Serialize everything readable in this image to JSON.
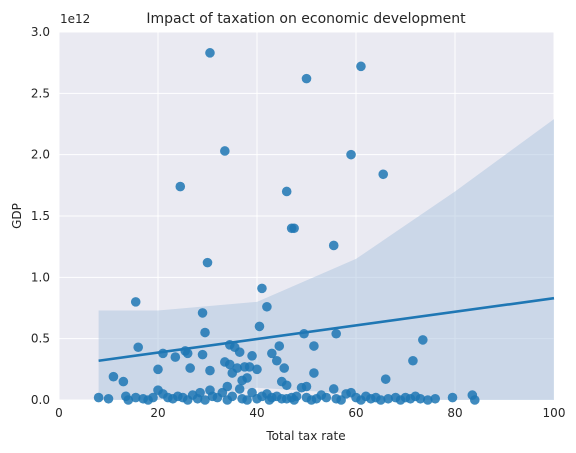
{
  "chart_data": {
    "type": "scatter",
    "title": "Impact of taxation on economic development",
    "xlabel": "Total tax rate",
    "ylabel": "GDP",
    "y_multiplier_label": "1e12",
    "xlim": [
      0,
      100
    ],
    "ylim": [
      0,
      3.0
    ],
    "xticks": [
      "0",
      "20",
      "40",
      "60",
      "80",
      "100"
    ],
    "yticks": [
      "0.0",
      "0.5",
      "1.0",
      "1.5",
      "2.0",
      "2.5",
      "3.0"
    ],
    "grid": true,
    "colors": {
      "background": "#eaeaf2",
      "grid": "#ffffff",
      "points": "#1f77b4",
      "band": "#b0c6e0"
    },
    "points": [
      [
        30.5,
        2.83
      ],
      [
        50,
        2.62
      ],
      [
        61,
        2.72
      ],
      [
        33.5,
        2.03
      ],
      [
        24.5,
        1.74
      ],
      [
        46,
        1.7
      ],
      [
        59,
        2.0
      ],
      [
        65.5,
        1.84
      ],
      [
        47,
        1.4
      ],
      [
        47.5,
        1.4
      ],
      [
        55.5,
        1.26
      ],
      [
        30,
        1.12
      ],
      [
        15.5,
        0.8
      ],
      [
        41,
        0.91
      ],
      [
        42,
        0.76
      ],
      [
        29,
        0.71
      ],
      [
        40.5,
        0.6
      ],
      [
        29.5,
        0.55
      ],
      [
        49.5,
        0.54
      ],
      [
        56,
        0.54
      ],
      [
        73.5,
        0.49
      ],
      [
        16,
        0.43
      ],
      [
        34.5,
        0.45
      ],
      [
        44.5,
        0.44
      ],
      [
        51.5,
        0.44
      ],
      [
        21,
        0.38
      ],
      [
        25.5,
        0.4
      ],
      [
        26,
        0.38
      ],
      [
        23.5,
        0.35
      ],
      [
        29,
        0.37
      ],
      [
        35.5,
        0.43
      ],
      [
        36.5,
        0.39
      ],
      [
        39,
        0.36
      ],
      [
        43,
        0.38
      ],
      [
        44,
        0.32
      ],
      [
        71.5,
        0.32
      ],
      [
        33.5,
        0.31
      ],
      [
        34.5,
        0.29
      ],
      [
        36,
        0.26
      ],
      [
        37.5,
        0.27
      ],
      [
        38.5,
        0.27
      ],
      [
        40,
        0.25
      ],
      [
        45.5,
        0.26
      ],
      [
        20,
        0.25
      ],
      [
        26.5,
        0.26
      ],
      [
        30.5,
        0.24
      ],
      [
        35,
        0.22
      ],
      [
        37,
        0.16
      ],
      [
        38,
        0.18
      ],
      [
        51.5,
        0.22
      ],
      [
        11,
        0.19
      ],
      [
        13,
        0.15
      ],
      [
        66,
        0.17
      ],
      [
        45,
        0.15
      ],
      [
        46,
        0.12
      ],
      [
        49,
        0.1
      ],
      [
        50,
        0.11
      ],
      [
        55.5,
        0.09
      ],
      [
        30.5,
        0.08
      ],
      [
        33,
        0.06
      ],
      [
        34,
        0.11
      ],
      [
        36.5,
        0.09
      ],
      [
        39,
        0.06
      ],
      [
        42,
        0.05
      ],
      [
        44,
        0.03
      ],
      [
        47,
        0.02
      ],
      [
        20,
        0.08
      ],
      [
        21,
        0.05
      ],
      [
        24,
        0.03
      ],
      [
        27,
        0.04
      ],
      [
        28.5,
        0.06
      ],
      [
        31,
        0.03
      ],
      [
        8,
        0.02
      ],
      [
        10,
        0.01
      ],
      [
        13.5,
        0.03
      ],
      [
        15.5,
        0.02
      ],
      [
        17,
        0.01
      ],
      [
        19,
        0.02
      ],
      [
        22,
        0.02
      ],
      [
        23,
        0.01
      ],
      [
        25,
        0.02
      ],
      [
        26,
        0.0
      ],
      [
        28,
        0.01
      ],
      [
        32,
        0.02
      ],
      [
        35,
        0.03
      ],
      [
        38,
        0.0
      ],
      [
        40,
        0.01
      ],
      [
        41,
        0.03
      ],
      [
        43,
        0.02
      ],
      [
        46,
        0.01
      ],
      [
        48,
        0.03
      ],
      [
        50,
        0.02
      ],
      [
        52,
        0.01
      ],
      [
        53,
        0.04
      ],
      [
        54,
        0.02
      ],
      [
        56,
        0.01
      ],
      [
        58,
        0.05
      ],
      [
        59,
        0.06
      ],
      [
        60,
        0.02
      ],
      [
        62,
        0.03
      ],
      [
        63,
        0.01
      ],
      [
        64,
        0.02
      ],
      [
        66.5,
        0.01
      ],
      [
        68,
        0.02
      ],
      [
        69,
        0.0
      ],
      [
        70,
        0.02
      ],
      [
        71,
        0.01
      ],
      [
        72,
        0.03
      ],
      [
        73,
        0.01
      ],
      [
        76,
        0.01
      ],
      [
        79.5,
        0.02
      ],
      [
        83.5,
        0.04
      ],
      [
        84,
        0.0
      ],
      [
        14,
        0.0
      ],
      [
        18,
        0.0
      ],
      [
        29.5,
        0.0
      ],
      [
        34,
        0.0
      ],
      [
        37,
        0.01
      ],
      [
        42.5,
        0.0
      ],
      [
        45,
        0.01
      ],
      [
        47.5,
        0.0
      ],
      [
        51,
        0.0
      ],
      [
        57,
        0.0
      ],
      [
        61,
        0.0
      ],
      [
        65,
        0.0
      ],
      [
        74.5,
        0.0
      ]
    ],
    "regression": {
      "x_start": 8,
      "y_start": 0.32,
      "x_end": 100,
      "y_end": 0.83
    },
    "confidence_band": {
      "x": [
        8,
        20,
        40,
        60,
        80,
        100
      ],
      "upper": [
        0.73,
        0.73,
        0.8,
        1.15,
        1.7,
        2.29
      ],
      "lower": [
        -0.1,
        0.0,
        0.1,
        0.05,
        -0.15,
        -0.55
      ]
    }
  }
}
